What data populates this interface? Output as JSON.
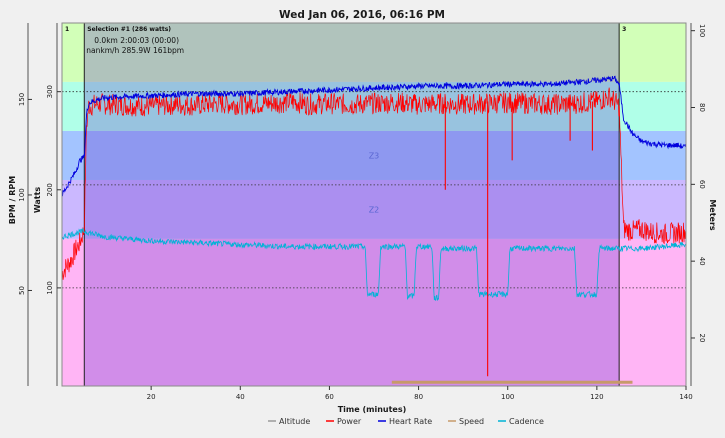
{
  "chart_data": {
    "type": "line",
    "title": "Wed Jan 06, 2016, 06:16 PM",
    "xlabel": "Time (minutes)",
    "ylabel_left_outer": "BPM / RPM",
    "ylabel_left_inner": "Watts",
    "ylabel_right": "Meters",
    "xlim": [
      0,
      140
    ],
    "x_ticks": [
      20,
      40,
      60,
      80,
      100,
      120,
      140
    ],
    "left_outer_ticks": [
      50,
      100,
      150
    ],
    "left_outer_lim": [
      0,
      190
    ],
    "left_inner_ticks": [
      100,
      200,
      300
    ],
    "left_inner_lim": [
      0,
      370
    ],
    "right_ticks": [
      20,
      40,
      60,
      80,
      100
    ],
    "right_lim": [
      7.5,
      102
    ],
    "intervals": [
      {
        "label": "1",
        "start": 0,
        "end": 5
      },
      {
        "label": "Selection #1 (286 watts)",
        "start": 5,
        "end": 125
      },
      {
        "label": "3",
        "start": 125,
        "end": 140
      }
    ],
    "selection_info": [
      "0.0km 2:00:03 (00:00)",
      "nankm/h 285.9W 161bpm"
    ],
    "power_zones": [
      {
        "label": "",
        "from": 0,
        "to": 150,
        "color": "#ffb5f5"
      },
      {
        "label": "Z2",
        "from": 150,
        "to": 210,
        "color": "#cbb8ff"
      },
      {
        "label": "Z3",
        "from": 210,
        "to": 260,
        "color": "#a3c4ff"
      },
      {
        "label": "",
        "from": 260,
        "to": 310,
        "color": "#b0ffe8"
      },
      {
        "label": "",
        "from": 310,
        "to": 370,
        "color": "#d2ffb8"
      }
    ],
    "reference_lines_watts": [
      100,
      205,
      300
    ],
    "series": [
      {
        "name": "Power",
        "color": "#ff0000",
        "x": [
          0,
          1,
          2,
          3,
          4,
          5,
          5.5,
          6,
          8,
          10,
          15,
          20,
          25,
          30,
          35,
          40,
          45,
          50,
          52,
          55,
          60,
          65,
          70,
          75,
          80,
          85,
          90,
          95,
          100,
          105,
          110,
          115,
          120,
          123,
          125,
          126,
          128,
          130,
          132,
          135,
          138,
          140
        ],
        "y": [
          115,
          122,
          128,
          138,
          146,
          160,
          265,
          285,
          288,
          287,
          286,
          285,
          287,
          286,
          288,
          287,
          288,
          289,
          290,
          287,
          288,
          287,
          288,
          289,
          287,
          288,
          287,
          288,
          289,
          288,
          287,
          288,
          290,
          295,
          285,
          160,
          158,
          160,
          157,
          155,
          156,
          158
        ]
      },
      {
        "name": "Heart Rate",
        "color": "#0000dd",
        "x": [
          0,
          1,
          2,
          3,
          4,
          5,
          5.5,
          6,
          8,
          10,
          20,
          30,
          40,
          50,
          60,
          70,
          80,
          90,
          100,
          110,
          120,
          124,
          125,
          126,
          128,
          130,
          132,
          135,
          138,
          140
        ],
        "y": [
          100,
          104,
          108,
          112,
          118,
          120,
          142,
          148,
          150,
          151,
          152,
          153,
          153,
          154,
          155,
          156,
          157,
          157,
          158,
          158,
          160,
          161,
          158,
          140,
          132,
          128,
          127,
          126,
          126,
          125
        ]
      },
      {
        "name": "Cadence",
        "color": "#00b3d6",
        "x": [
          0,
          3,
          5,
          8,
          10,
          20,
          30,
          40,
          50,
          60,
          65,
          68,
          68.5,
          71,
          71.5,
          75,
          77,
          77.5,
          79,
          79.5,
          83,
          83.5,
          84.5,
          85,
          93,
          93.5,
          100,
          100.5,
          108,
          115,
          115.5,
          120,
          120.5,
          124,
          125,
          126,
          130,
          135,
          140
        ],
        "y": [
          78,
          80,
          81,
          79,
          78,
          76,
          75,
          74,
          73,
          73,
          73,
          73,
          48,
          48,
          73,
          73,
          73,
          47,
          47,
          73,
          73,
          46,
          46,
          72,
          72,
          48,
          48,
          72,
          72,
          72,
          48,
          48,
          72,
          72,
          72,
          72,
          72,
          73,
          74
        ]
      },
      {
        "name": "Speed",
        "color": "#c79a6a",
        "x": [
          74,
          128
        ],
        "y": [
          2,
          2
        ]
      },
      {
        "name": "Altitude",
        "color": "#808080",
        "x": [],
        "y": []
      }
    ],
    "spikes": [
      {
        "x": 86,
        "to": 200
      },
      {
        "x": 95.5,
        "to": 10
      },
      {
        "x": 101,
        "to": 230
      },
      {
        "x": 114,
        "to": 250
      },
      {
        "x": 119,
        "to": 240
      }
    ],
    "legend": [
      "Altitude",
      "Power",
      "Heart Rate",
      "Speed",
      "Cadence"
    ],
    "legend_colors": [
      "#9a9a9a",
      "#ff0000",
      "#0000dd",
      "#c79a6a",
      "#00b3d6"
    ],
    "legend_position": "bottom",
    "grid": false
  }
}
